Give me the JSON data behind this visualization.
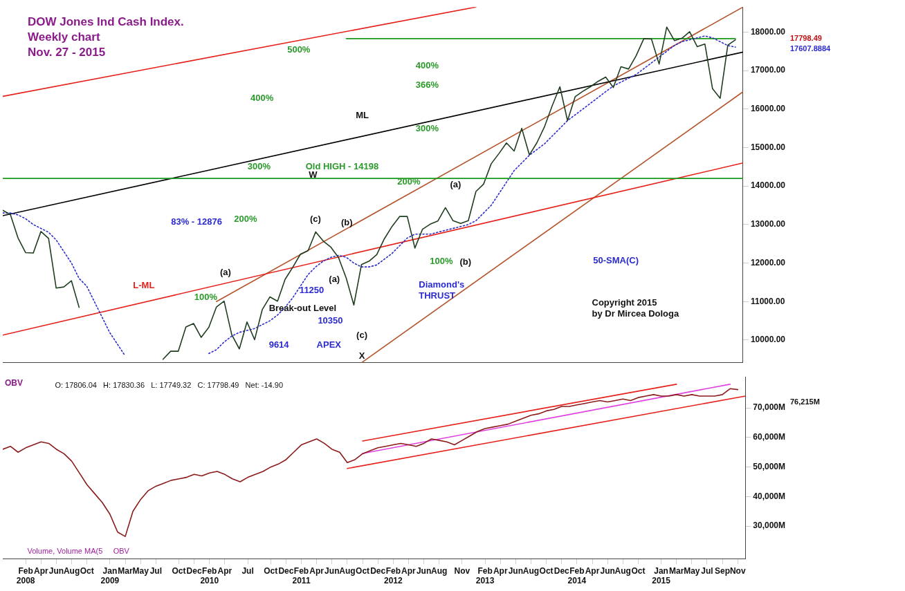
{
  "chart_data": [
    {
      "type": "line",
      "title": "DOW Jones Ind Cash Index.\nWeekly chart\nNov. 27 - 2015",
      "marker": "none",
      "tick_labels": "y",
      "grid": false,
      "x": [
        "2007-11",
        "2007-12",
        "2008-01",
        "2008-02",
        "2008-03",
        "2008-04",
        "2008-05",
        "2008-06",
        "2008-07",
        "2008-08",
        "2008-09",
        "2008-10",
        "2008-11",
        "2008-12",
        "2009-01",
        "2009-02",
        "2009-03",
        "2009-04",
        "2009-05",
        "2009-06",
        "2009-07",
        "2009-08",
        "2009-09",
        "2009-10",
        "2009-11",
        "2009-12",
        "2010-01",
        "2010-02",
        "2010-03",
        "2010-04",
        "2010-05",
        "2010-06",
        "2010-07",
        "2010-08",
        "2010-09",
        "2010-10",
        "2010-11",
        "2010-12",
        "2011-01",
        "2011-02",
        "2011-03",
        "2011-04",
        "2011-05",
        "2011-06",
        "2011-07",
        "2011-08",
        "2011-09",
        "2011-10",
        "2011-11",
        "2011-12",
        "2012-01",
        "2012-02",
        "2012-03",
        "2012-04",
        "2012-05",
        "2012-06",
        "2012-07",
        "2012-08",
        "2012-09",
        "2012-10",
        "2012-11",
        "2012-12",
        "2013-01",
        "2013-02",
        "2013-03",
        "2013-04",
        "2013-05",
        "2013-06",
        "2013-07",
        "2013-08",
        "2013-09",
        "2013-10",
        "2013-11",
        "2013-12",
        "2014-01",
        "2014-02",
        "2014-03",
        "2014-04",
        "2014-05",
        "2014-06",
        "2014-07",
        "2014-08",
        "2014-09",
        "2014-10",
        "2014-11",
        "2014-12",
        "2015-01",
        "2015-02",
        "2015-03",
        "2015-04",
        "2015-05",
        "2015-06",
        "2015-07",
        "2015-08",
        "2015-09",
        "2015-10",
        "2015-11"
      ],
      "series": [
        {
          "color": "#1f3d1f",
          "values": [
            13370,
            13260,
            12650,
            12270,
            12260,
            12820,
            12640,
            11350,
            11380,
            11540,
            10850,
            null,
            null,
            null,
            null,
            null,
            null,
            null,
            null,
            null,
            null,
            9500,
            9710,
            9710,
            10340,
            10430,
            10070,
            10330,
            10860,
            11010,
            10140,
            9770,
            10470,
            10010,
            10790,
            11120,
            11010,
            11580,
            11890,
            12230,
            12320,
            12810,
            12570,
            12410,
            12140,
            11610,
            10910,
            11960,
            12050,
            12220,
            12630,
            12950,
            13210,
            13210,
            12390,
            12880,
            13010,
            13090,
            13440,
            13100,
            13030,
            13100,
            13860,
            14050,
            14580,
            14840,
            15120,
            14910,
            15500,
            14810,
            15130,
            15550,
            16090,
            16580,
            15700,
            16320,
            16460,
            16580,
            16720,
            16830,
            16560,
            17100,
            17040,
            17390,
            17830,
            17820,
            17170,
            18130,
            17780,
            17840,
            18010,
            17620,
            17690,
            16530,
            16280,
            17660,
            17800
          ]
        },
        {
          "color": "#2a2ad0",
          "line_style": "dotted",
          "values": [
            13300,
            13300,
            13250,
            13150,
            13000,
            12900,
            12800,
            12600,
            12300,
            12000,
            11600,
            11400,
            11000,
            10600,
            10200,
            9900,
            9600,
            null,
            null,
            null,
            null,
            null,
            null,
            null,
            null,
            null,
            null,
            9650,
            9750,
            9950,
            10100,
            10200,
            10250,
            10300,
            10400,
            10500,
            10650,
            10850,
            11100,
            11400,
            11700,
            11900,
            12050,
            12150,
            12200,
            12150,
            12000,
            11900,
            11900,
            11950,
            12100,
            12250,
            12450,
            12650,
            12750,
            12750,
            12750,
            12800,
            12850,
            12900,
            12950,
            13000,
            13100,
            13300,
            13500,
            13800,
            14100,
            14400,
            14600,
            14800,
            14950,
            15100,
            15300,
            15500,
            15700,
            15850,
            16000,
            16150,
            16300,
            16450,
            16600,
            16700,
            16800,
            16900,
            17050,
            17200,
            17350,
            17500,
            17650,
            17750,
            17800,
            17850,
            17900,
            17850,
            17750,
            17650,
            17610
          ]
        },
        {
          "color": "#e8201a",
          "x": [
            "2007-11",
            "2013-01"
          ],
          "values": [
            16330,
            18650
          ]
        },
        {
          "color": "#000000",
          "x": [
            "2007-11",
            "2015-12"
          ],
          "values": [
            13230,
            17480
          ]
        },
        {
          "color": "#e8201a",
          "x": [
            "2007-11",
            "2015-12"
          ],
          "values": [
            10130,
            14600
          ]
        },
        {
          "color": "#1a9a1a",
          "x": [
            "2011-08",
            "2015-11"
          ],
          "values": [
            17830,
            17830
          ]
        },
        {
          "color": "#b5532a",
          "x": [
            "2010-03",
            "2015-12"
          ],
          "values": [
            11000,
            18650
          ]
        },
        {
          "color": "#b5532a",
          "x": [
            "2011-10",
            "2015-12"
          ],
          "values": [
            9410,
            16450
          ]
        }
      ],
      "ref_lines": [
        {
          "axis": "y",
          "value": 14198,
          "color": "#1a9a1a"
        }
      ],
      "xlim": [
        "2007-11",
        "2015-12"
      ],
      "ylim": [
        9410,
        18650
      ],
      "yticks": [
        {
          "value": 10000,
          "label": "10000.00"
        },
        {
          "value": 11000,
          "label": "11000.00"
        },
        {
          "value": 12000,
          "label": "12000.00"
        },
        {
          "value": 13000,
          "label": "13000.00"
        },
        {
          "value": 14000,
          "label": "14000.00"
        },
        {
          "value": 15000,
          "label": "15000.00"
        },
        {
          "value": 16000,
          "label": "16000.00"
        },
        {
          "value": 17000,
          "label": "17000.00"
        },
        {
          "value": 18000,
          "label": "18000.00"
        }
      ],
      "annotations": [
        "ML",
        "L-ML",
        "50-SMA(C)",
        "W",
        "X",
        "(a)",
        "(c)",
        "(b)",
        "(a)",
        "(c)",
        "(a)",
        "(b)",
        "100%",
        "83% - 12876",
        "200%",
        "300%",
        "400%",
        "500%",
        "Old HIGH - 14198",
        "11250",
        "Break-out Level",
        "10350",
        "9614",
        "APEX",
        "400%",
        "366%",
        "300%",
        "200%",
        "100%",
        "Diamond's\nTHRUST",
        "17798.49",
        "17607.8884",
        "Copyright 2015\nby Dr Mircea Dologa"
      ]
    },
    {
      "type": "line",
      "title": "OBV",
      "marker": "none",
      "grid": false,
      "x": [
        "2007-11",
        "2007-12",
        "2008-01",
        "2008-02",
        "2008-03",
        "2008-04",
        "2008-05",
        "2008-06",
        "2008-07",
        "2008-08",
        "2008-09",
        "2008-10",
        "2008-11",
        "2008-12",
        "2009-01",
        "2009-02",
        "2009-03",
        "2009-04",
        "2009-05",
        "2009-06",
        "2009-07",
        "2009-08",
        "2009-09",
        "2009-10",
        "2009-11",
        "2009-12",
        "2010-01",
        "2010-02",
        "2010-03",
        "2010-04",
        "2010-05",
        "2010-06",
        "2010-07",
        "2010-08",
        "2010-09",
        "2010-10",
        "2010-11",
        "2010-12",
        "2011-01",
        "2011-02",
        "2011-03",
        "2011-04",
        "2011-05",
        "2011-06",
        "2011-07",
        "2011-08",
        "2011-09",
        "2011-10",
        "2011-11",
        "2011-12",
        "2012-01",
        "2012-02",
        "2012-03",
        "2012-04",
        "2012-05",
        "2012-06",
        "2012-07",
        "2012-08",
        "2012-09",
        "2012-10",
        "2012-11",
        "2012-12",
        "2013-01",
        "2013-02",
        "2013-03",
        "2013-04",
        "2013-05",
        "2013-06",
        "2013-07",
        "2013-08",
        "2013-09",
        "2013-10",
        "2013-11",
        "2013-12",
        "2014-01",
        "2014-02",
        "2014-03",
        "2014-04",
        "2014-05",
        "2014-06",
        "2014-07",
        "2014-08",
        "2014-09",
        "2014-10",
        "2014-11",
        "2014-12",
        "2015-01",
        "2015-02",
        "2015-03",
        "2015-04",
        "2015-05",
        "2015-06",
        "2015-07",
        "2015-08",
        "2015-09",
        "2015-10",
        "2015-11"
      ],
      "series": [
        {
          "color": "#8b1a1a",
          "values": [
            56000,
            57000,
            55000,
            56500,
            57500,
            58500,
            58000,
            56000,
            54500,
            52000,
            48000,
            44000,
            41000,
            38000,
            34000,
            28000,
            26500,
            35000,
            39000,
            42000,
            43500,
            44500,
            45500,
            46000,
            46500,
            47500,
            47000,
            48000,
            48500,
            47500,
            46000,
            45000,
            46500,
            47500,
            48500,
            50000,
            51000,
            52500,
            55000,
            57500,
            58500,
            59500,
            58000,
            56000,
            55000,
            51500,
            52500,
            54500,
            55500,
            56500,
            57000,
            57500,
            58000,
            57500,
            57000,
            58000,
            59500,
            59000,
            58500,
            57500,
            59000,
            60500,
            62000,
            63000,
            63500,
            64000,
            64500,
            65500,
            66500,
            67500,
            68000,
            69000,
            69500,
            70500,
            70500,
            71000,
            71500,
            72000,
            72500,
            72000,
            72500,
            73000,
            72500,
            73500,
            74000,
            74500,
            74000,
            74000,
            74500,
            74000,
            74500,
            74000,
            74000,
            74000,
            74500,
            76500,
            76200
          ]
        },
        {
          "color": "#e8201a",
          "x": [
            "2011-10",
            "2015-03"
          ],
          "values": [
            58800,
            78000
          ]
        },
        {
          "color": "#e8201a",
          "x": [
            "2011-08",
            "2015-12"
          ],
          "values": [
            49500,
            74000
          ]
        },
        {
          "color": "#e040e0",
          "x": [
            "2011-10",
            "2015-10"
          ],
          "values": [
            54600,
            78000
          ]
        }
      ],
      "xlim": [
        "2007-11",
        "2015-12"
      ],
      "ylim": [
        19000,
        80500
      ],
      "xticks": [
        {
          "value": "2008-02",
          "label": "Feb\n2008"
        },
        {
          "value": "2008-04",
          "label": "Apr"
        },
        {
          "value": "2008-06",
          "label": "Jun"
        },
        {
          "value": "2008-08",
          "label": "Aug"
        },
        {
          "value": "2008-10",
          "label": "Oct"
        },
        {
          "value": "2009-01",
          "label": "Jan\n2009"
        },
        {
          "value": "2009-03",
          "label": "Mar"
        },
        {
          "value": "2009-05",
          "label": "May"
        },
        {
          "value": "2009-07",
          "label": "Jul"
        },
        {
          "value": "2009-10",
          "label": "Oct"
        },
        {
          "value": "2009-12",
          "label": "Dec"
        },
        {
          "value": "2010-02",
          "label": "Feb\n2010"
        },
        {
          "value": "2010-04",
          "label": "Apr"
        },
        {
          "value": "2010-07",
          "label": "Jul"
        },
        {
          "value": "2010-10",
          "label": "Oct"
        },
        {
          "value": "2010-12",
          "label": "Dec"
        },
        {
          "value": "2011-02",
          "label": "Feb\n2011"
        },
        {
          "value": "2011-04",
          "label": "Apr"
        },
        {
          "value": "2011-06",
          "label": "Jun"
        },
        {
          "value": "2011-08",
          "label": "Aug"
        },
        {
          "value": "2011-10",
          "label": "Oct"
        },
        {
          "value": "2011-12",
          "label": "Dec"
        },
        {
          "value": "2012-02",
          "label": "Feb\n2012"
        },
        {
          "value": "2012-04",
          "label": "Apr"
        },
        {
          "value": "2012-06",
          "label": "Jun"
        },
        {
          "value": "2012-08",
          "label": "Aug"
        },
        {
          "value": "2012-11",
          "label": "Nov"
        },
        {
          "value": "2013-02",
          "label": "Feb\n2013"
        },
        {
          "value": "2013-04",
          "label": "Apr"
        },
        {
          "value": "2013-06",
          "label": "Jun"
        },
        {
          "value": "2013-08",
          "label": "Aug"
        },
        {
          "value": "2013-10",
          "label": "Oct"
        },
        {
          "value": "2013-12",
          "label": "Dec"
        },
        {
          "value": "2014-02",
          "label": "Feb\n2014"
        },
        {
          "value": "2014-04",
          "label": "Apr"
        },
        {
          "value": "2014-06",
          "label": "Jun"
        },
        {
          "value": "2014-08",
          "label": "Aug"
        },
        {
          "value": "2014-10",
          "label": "Oct"
        },
        {
          "value": "2015-01",
          "label": "Jan\n2015"
        },
        {
          "value": "2015-03",
          "label": "Mar"
        },
        {
          "value": "2015-05",
          "label": "May"
        },
        {
          "value": "2015-07",
          "label": "Jul"
        },
        {
          "value": "2015-09",
          "label": "Sep"
        },
        {
          "value": "2015-11",
          "label": "Nov"
        }
      ],
      "yticks": [
        {
          "value": 30000,
          "label": "30,000M"
        },
        {
          "value": 40000,
          "label": "40,000M"
        },
        {
          "value": 50000,
          "label": "50,000M"
        },
        {
          "value": 60000,
          "label": "60,000M"
        },
        {
          "value": 70000,
          "label": "70,000M"
        }
      ],
      "annotations": [
        "76,215M",
        "O: 17806.04   H: 17830.36   L: 17749.32   C: 17798.49   Net: -14.90",
        "Volume, Volume MA(5",
        "OBV"
      ]
    }
  ]
}
